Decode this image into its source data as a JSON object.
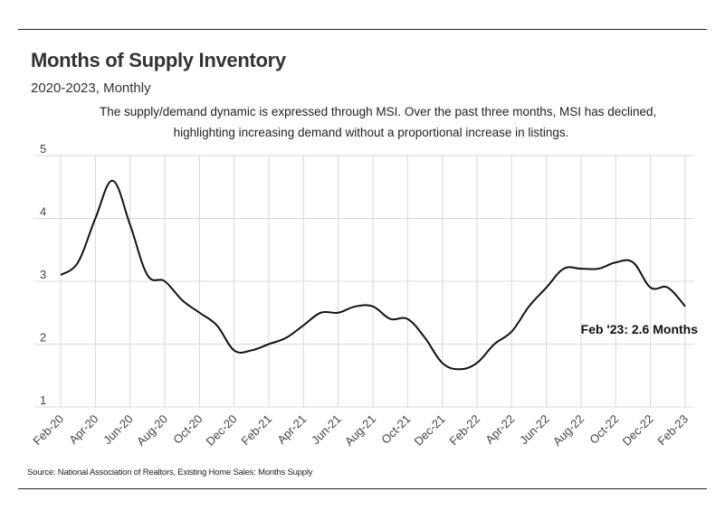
{
  "title": "Months of Supply Inventory",
  "subtitle": "2020-2023, Monthly",
  "description": [
    "The supply/demand dynamic is expressed through MSI. Over the past three months, MSI has declined,",
    "highlighting increasing demand without a proportional increase in listings."
  ],
  "source": "Source:  National Association of Realtors, Existing Home Sales: Months Supply",
  "annotation": "Feb '23: 2.6 Months",
  "colors": {
    "line": "#111111",
    "grid": "#d9d9d9",
    "axis": "#333333"
  },
  "chart_data": {
    "type": "line",
    "title": "Months of Supply Inventory",
    "subtitle": "2020-2023, Monthly",
    "xlabel": "",
    "ylabel": "",
    "ylim": [
      1,
      5
    ],
    "yticks": [
      1,
      2,
      3,
      4,
      5
    ],
    "grid": true,
    "xtick_labels": [
      "Feb-20",
      "Apr-20",
      "Jun-20",
      "Aug-20",
      "Oct-20",
      "Dec-20",
      "Feb-21",
      "Apr-21",
      "Jun-21",
      "Aug-21",
      "Oct-21",
      "Dec-21",
      "Feb-22",
      "Apr-22",
      "Jun-22",
      "Aug-22",
      "Oct-22",
      "Dec-22",
      "Feb-23"
    ],
    "x": [
      "Feb-20",
      "Mar-20",
      "Apr-20",
      "May-20",
      "Jun-20",
      "Jul-20",
      "Aug-20",
      "Sep-20",
      "Oct-20",
      "Nov-20",
      "Dec-20",
      "Jan-21",
      "Feb-21",
      "Mar-21",
      "Apr-21",
      "May-21",
      "Jun-21",
      "Jul-21",
      "Aug-21",
      "Sep-21",
      "Oct-21",
      "Nov-21",
      "Dec-21",
      "Jan-22",
      "Feb-22",
      "Mar-22",
      "Apr-22",
      "May-22",
      "Jun-22",
      "Jul-22",
      "Aug-22",
      "Sep-22",
      "Oct-22",
      "Nov-22",
      "Dec-22",
      "Jan-23",
      "Feb-23"
    ],
    "series": [
      {
        "name": "Months Supply",
        "values": [
          3.1,
          3.3,
          4.0,
          4.6,
          3.9,
          3.1,
          3.0,
          2.7,
          2.5,
          2.3,
          1.9,
          1.9,
          2.0,
          2.1,
          2.3,
          2.5,
          2.5,
          2.6,
          2.6,
          2.4,
          2.4,
          2.1,
          1.7,
          1.6,
          1.7,
          2.0,
          2.2,
          2.6,
          2.9,
          3.2,
          3.2,
          3.2,
          3.3,
          3.3,
          2.9,
          2.9,
          2.6
        ]
      }
    ],
    "annotations": [
      {
        "x": "Feb-23",
        "y": 2.6,
        "text": "Feb '23: 2.6 Months"
      }
    ]
  }
}
